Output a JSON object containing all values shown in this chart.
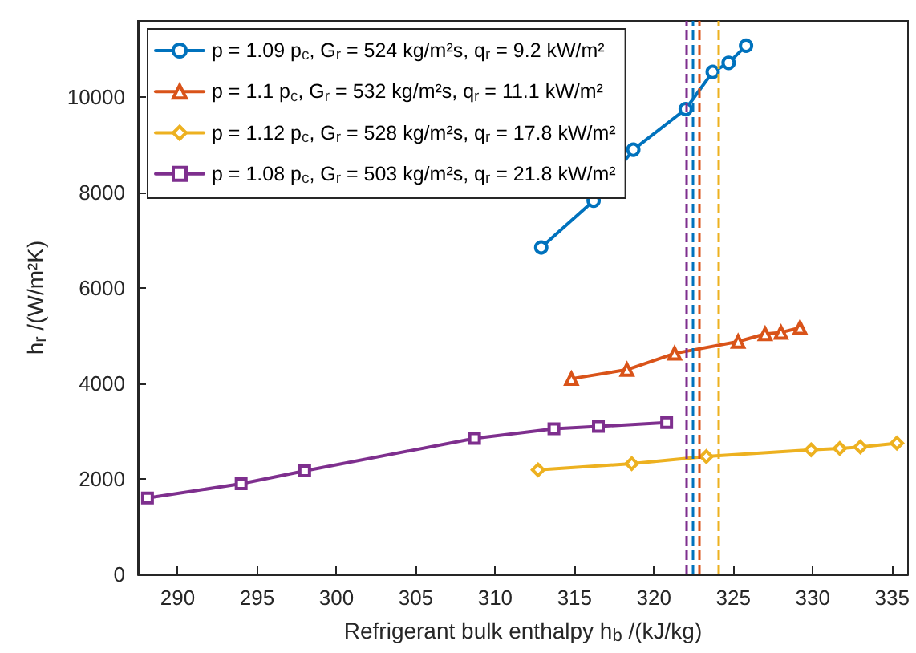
{
  "chart_data": {
    "type": "line",
    "xlabel": "Refrigerant bulk enthalpy h$_{b}$ /(kJ/kg)",
    "ylabel": "h$_{r}$ /(W/m²K)",
    "xlim": [
      287.5,
      336
    ],
    "xticks": [
      290,
      295,
      300,
      305,
      310,
      315,
      320,
      325,
      330,
      335
    ],
    "ylim": [
      0,
      11600
    ],
    "yticks": [
      0,
      2000,
      4000,
      6000,
      8000,
      10000
    ],
    "grid": false,
    "legend": "top left",
    "line_style": "solid",
    "series": [
      {
        "name": "p = 1.09 p$_{c}$, G$_{r}$ = 524 kg/m²s, q$_{r}$ = 9.2 kW/m²",
        "color": "#0072bd",
        "marker": "circle",
        "x": [
          312.9,
          316.2,
          318.7,
          322.0,
          323.7,
          324.7,
          325.8
        ],
        "values": [
          6850,
          7830,
          8900,
          9750,
          10530,
          10720,
          11080
        ]
      },
      {
        "name": "p = 1.1 p$_{c}$, G$_{r}$ = 532 kg/m²s, q$_{r}$ = 11.1 kW/m²",
        "color": "#d95319",
        "marker": "triangle",
        "x": [
          314.8,
          318.3,
          321.3,
          325.3,
          327.0,
          328.0,
          329.2
        ],
        "values": [
          4100,
          4290,
          4630,
          4880,
          5040,
          5070,
          5170
        ]
      },
      {
        "name": "p = 1.12 p$_{c}$, G$_{r}$ = 528 kg/m²s, q$_{r}$ = 17.8 kW/m²",
        "color": "#edb120",
        "marker": "diamond",
        "x": [
          312.7,
          318.6,
          323.3,
          329.9,
          331.7,
          333.0,
          335.3
        ],
        "values": [
          2190,
          2320,
          2470,
          2610,
          2640,
          2670,
          2750
        ]
      },
      {
        "name": "p = 1.08 p$_{c}$, G$_{r}$ = 503 kg/m²s, q$_{r}$ = 21.8 kW/m²",
        "color": "#7e2f8e",
        "marker": "square",
        "x": [
          288.1,
          294.0,
          298.0,
          308.7,
          313.7,
          316.5,
          320.8
        ],
        "values": [
          1600,
          1900,
          2170,
          2850,
          3050,
          3100,
          3180
        ]
      }
    ],
    "ref_lines": [
      {
        "axis": "x",
        "value": 322.05,
        "color": "#7e2f8e",
        "line_style": "dashed"
      },
      {
        "axis": "x",
        "value": 322.4,
        "color": "#0072bd",
        "line_style": "dashed"
      },
      {
        "axis": "x",
        "value": 322.8,
        "color": "#d95319",
        "line_style": "dashed"
      },
      {
        "axis": "x",
        "value": 324.1,
        "color": "#edb120",
        "line_style": "dashed"
      }
    ]
  }
}
